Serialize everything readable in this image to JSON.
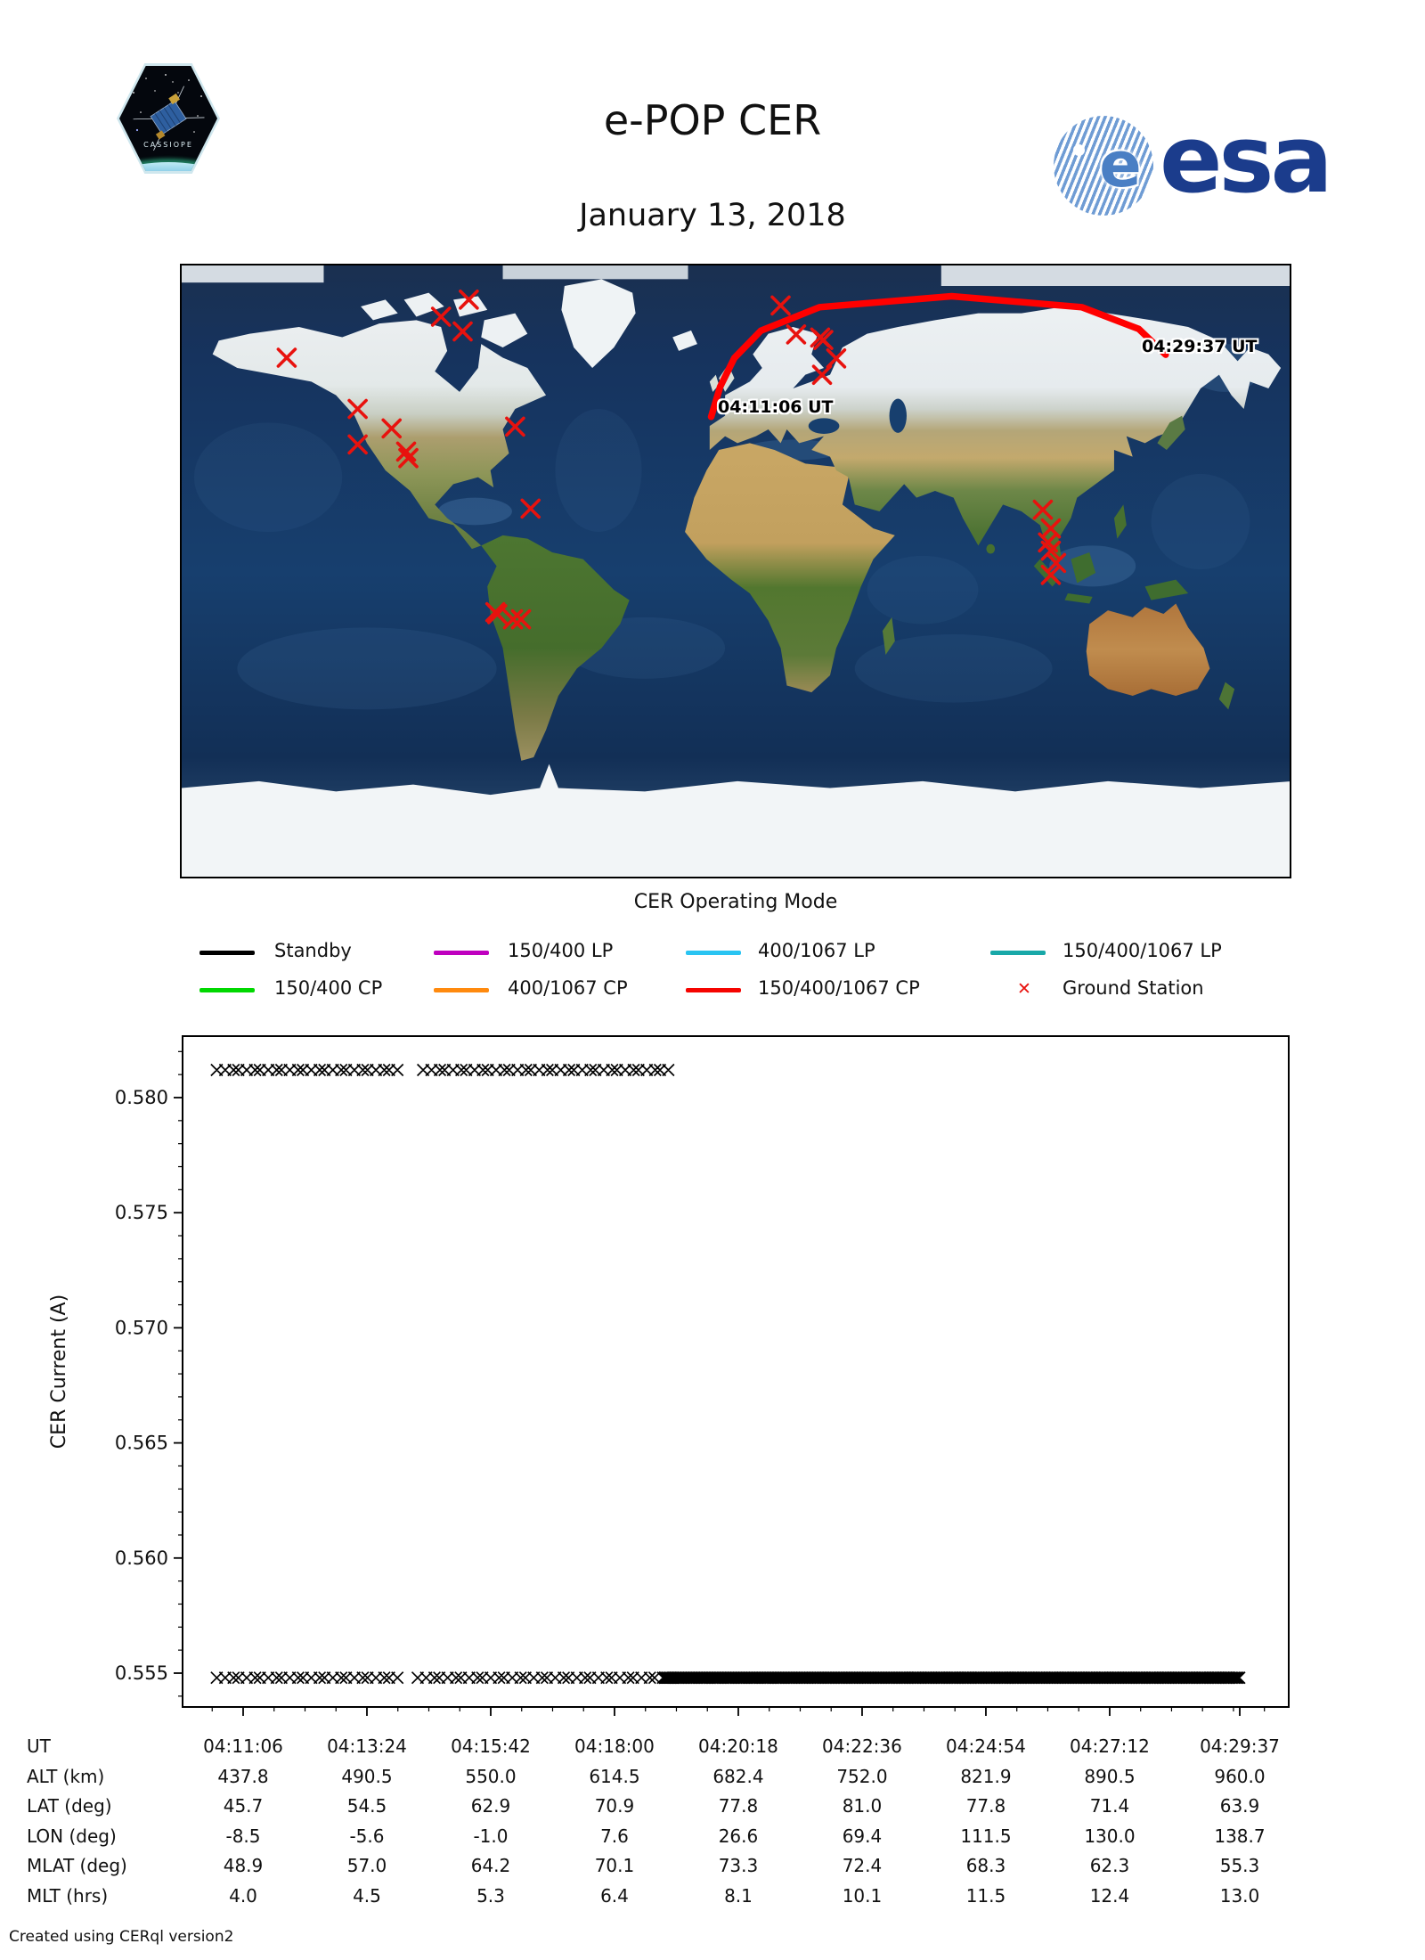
{
  "header": {
    "title": "e-POP CER",
    "date": "January 13, 2018",
    "esa_logo_text": "esa",
    "cassiope_patch_text": "CASSIOPE"
  },
  "map": {
    "start_time_label": "04:11:06 UT",
    "end_time_label": "04:29:37 UT",
    "trajectory_color": "#ff0000",
    "ground_station_color": "#e8120e",
    "trajectory_lonlat": [
      [
        -8.5,
        45.7
      ],
      [
        -5.6,
        54.5
      ],
      [
        -1.0,
        62.9
      ],
      [
        7.6,
        70.9
      ],
      [
        26.6,
        77.8
      ],
      [
        69.4,
        81.0
      ],
      [
        111.5,
        77.8
      ],
      [
        130.0,
        71.4
      ],
      [
        138.7,
        63.9
      ]
    ],
    "ground_stations_lonlat": [
      [
        -87,
        80
      ],
      [
        -96,
        75
      ],
      [
        -89,
        70.7
      ],
      [
        -146,
        63
      ],
      [
        -123,
        48
      ],
      [
        -112,
        42.3
      ],
      [
        -123,
        37.6
      ],
      [
        -107.3,
        35.5
      ],
      [
        -106.6,
        33.6
      ],
      [
        -72,
        42.8
      ],
      [
        -67,
        18.8
      ],
      [
        -78.4,
        -11.5
      ],
      [
        -77.8,
        -12.1
      ],
      [
        -72.7,
        -13.6
      ],
      [
        -70.1,
        -13.6
      ],
      [
        14,
        78.3
      ],
      [
        19,
        69.8
      ],
      [
        26.8,
        68.9
      ],
      [
        27.8,
        68.2
      ],
      [
        32,
        62.8
      ],
      [
        27.4,
        58
      ],
      [
        98.9,
        18.5
      ],
      [
        101.5,
        13
      ],
      [
        100.6,
        8.9
      ],
      [
        101.5,
        6.5
      ],
      [
        103.2,
        2.9
      ],
      [
        101.5,
        -0.6
      ]
    ]
  },
  "legend": {
    "title": "CER Operating Mode",
    "items": [
      {
        "label": "Standby",
        "color": "#000000",
        "kind": "line"
      },
      {
        "label": "150/400 LP",
        "color": "#bf00bf",
        "kind": "line"
      },
      {
        "label": "400/1067 LP",
        "color": "#29c4f2",
        "kind": "line"
      },
      {
        "label": "150/400/1067 LP",
        "color": "#18a8a8",
        "kind": "line"
      },
      {
        "label": "150/400 CP",
        "color": "#00d800",
        "kind": "line"
      },
      {
        "label": "400/1067 CP",
        "color": "#ff8a0e",
        "kind": "line"
      },
      {
        "label": "150/400/1067 CP",
        "color": "#f50400",
        "kind": "line"
      },
      {
        "label": "Ground Station",
        "color": "#e8120e",
        "kind": "x-marker"
      }
    ]
  },
  "chart_data": {
    "type": "scatter",
    "marker": "x",
    "marker_color": "#000000",
    "title": "",
    "xlabel": "UT",
    "ylabel": "CER Current (A)",
    "x_tick_labels": [
      "04:11:06",
      "04:13:24",
      "04:15:42",
      "04:18:00",
      "04:20:18",
      "04:22:36",
      "04:24:54",
      "04:27:12",
      "04:29:37"
    ],
    "x_tick_seconds": [
      0,
      138,
      276,
      414,
      552,
      690,
      828,
      966,
      1111
    ],
    "x_minor_step_seconds": 34.5,
    "y_ticks": [
      0.555,
      0.56,
      0.565,
      0.57,
      0.575,
      0.58
    ],
    "y_minor_step": 0.001,
    "ylim": [
      0.5535,
      0.5827
    ],
    "xlim_seconds": [
      -68,
      1165
    ],
    "grid": false,
    "series": [
      {
        "name": "CER current high level",
        "value_A": 0.5812,
        "segments": [
          {
            "t_start": -28,
            "t_end": 176,
            "step_s": 8
          },
          {
            "t_start": 202,
            "t_end": 476,
            "step_s": 8
          }
        ]
      },
      {
        "name": "CER current low level",
        "value_A": 0.5548,
        "segments": [
          {
            "t_start": -28,
            "t_end": 172,
            "step_s": 8
          },
          {
            "t_start": 196,
            "t_end": 470,
            "step_s": 8
          },
          {
            "t_start": 470,
            "t_end": 1111,
            "step_s": 1.5
          }
        ]
      }
    ]
  },
  "table": {
    "rows": [
      {
        "label": "UT",
        "values": [
          "04:11:06",
          "04:13:24",
          "04:15:42",
          "04:18:00",
          "04:20:18",
          "04:22:36",
          "04:24:54",
          "04:27:12",
          "04:29:37"
        ]
      },
      {
        "label": "ALT (km)",
        "values": [
          "437.8",
          "490.5",
          "550.0",
          "614.5",
          "682.4",
          "752.0",
          "821.9",
          "890.5",
          "960.0"
        ]
      },
      {
        "label": "LAT (deg)",
        "values": [
          "45.7",
          "54.5",
          "62.9",
          "70.9",
          "77.8",
          "81.0",
          "77.8",
          "71.4",
          "63.9"
        ]
      },
      {
        "label": "LON (deg)",
        "values": [
          "-8.5",
          "-5.6",
          "-1.0",
          "7.6",
          "26.6",
          "69.4",
          "111.5",
          "130.0",
          "138.7"
        ]
      },
      {
        "label": "MLAT (deg)",
        "values": [
          "48.9",
          "57.0",
          "64.2",
          "70.1",
          "73.3",
          "72.4",
          "68.3",
          "62.3",
          "55.3"
        ]
      },
      {
        "label": "MLT (hrs)",
        "values": [
          "4.0",
          "4.5",
          "5.3",
          "6.4",
          "8.1",
          "10.1",
          "11.5",
          "12.4",
          "13.0"
        ]
      }
    ]
  },
  "footer": {
    "text": "Created using CERql version2"
  }
}
